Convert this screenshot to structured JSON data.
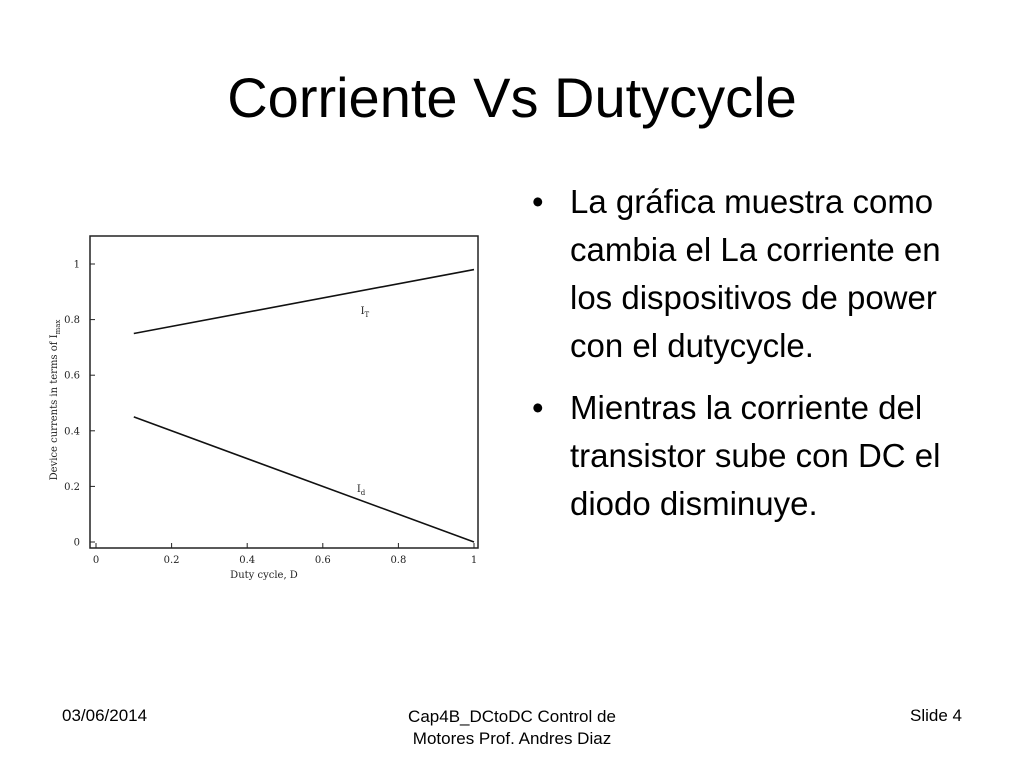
{
  "slide": {
    "title": "Corriente Vs Dutycycle",
    "bullets": [
      "La gráfica muestra como cambia el La corriente en los dispositivos de power con el dutycycle.",
      "Mientras la corriente del transistor sube con DC el diodo disminuye."
    ],
    "bullet_glyph": "•"
  },
  "footer": {
    "date": "03/06/2014",
    "center_line1": "Cap4B_DCtoDC Control de",
    "center_line2": "Motores Prof. Andres Diaz",
    "slide_number": "Slide 4"
  },
  "chart_data": {
    "type": "line",
    "xlabel": "Duty cycle, D",
    "ylabel": "Device currents in terms of I",
    "ylabel_subscript": "max",
    "x_ticks": [
      "0",
      "0.2",
      "0.4",
      "0.6",
      "0.8",
      "1"
    ],
    "y_ticks": [
      "0",
      "0.2",
      "0.4",
      "0.6",
      "0.8",
      "1"
    ],
    "xlim": [
      0,
      1
    ],
    "ylim": [
      0,
      1
    ],
    "grid": false,
    "series": [
      {
        "name": "I",
        "subscript": "T",
        "x": [
          0.1,
          1.0
        ],
        "y": [
          0.75,
          0.98
        ],
        "label_at": [
          0.7,
          0.82
        ]
      },
      {
        "name": "I",
        "subscript": "d",
        "x": [
          0.1,
          1.0
        ],
        "y": [
          0.45,
          0.0
        ],
        "label_at": [
          0.69,
          0.18
        ]
      }
    ]
  }
}
